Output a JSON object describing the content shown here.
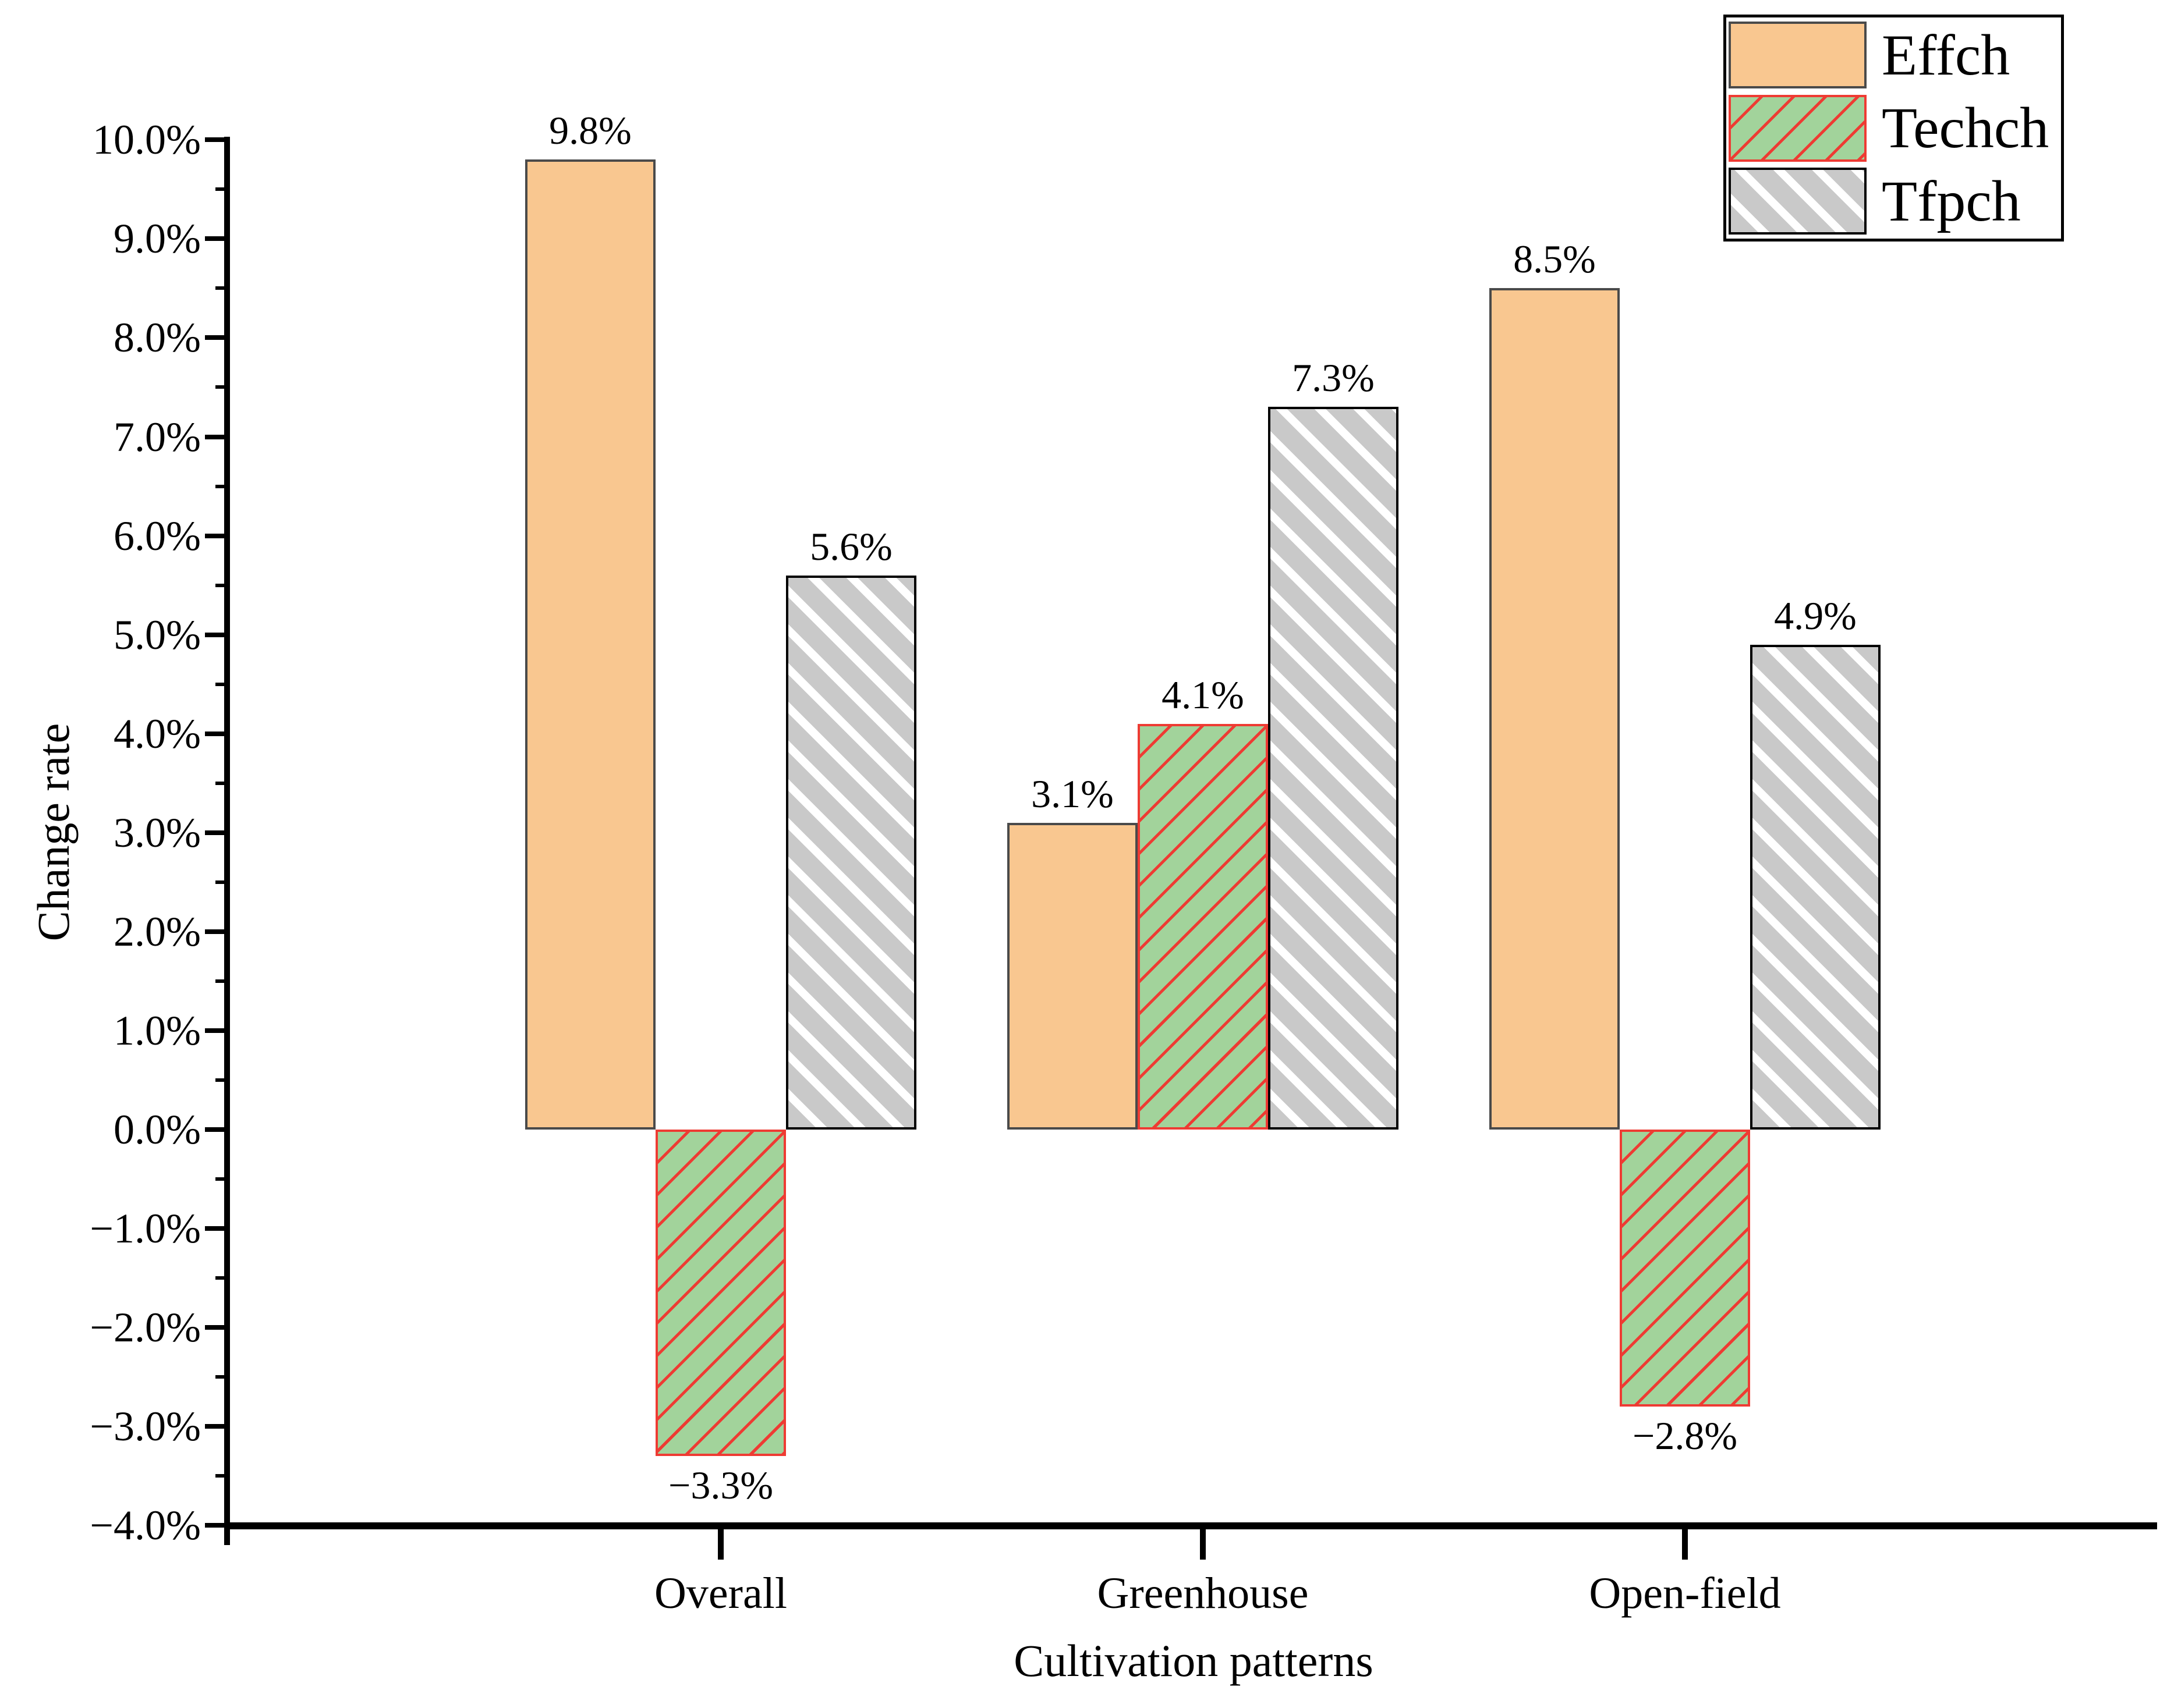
{
  "chart_data": {
    "type": "bar",
    "title": "",
    "xlabel": "Cultivation patterns",
    "ylabel": "Change rate",
    "categories": [
      "Overall",
      "Greenhouse",
      "Open-field"
    ],
    "series": [
      {
        "name": "Effch",
        "values": [
          9.8,
          3.1,
          8.5
        ],
        "value_labels": [
          "9.8%",
          "3.1%",
          "8.5%"
        ],
        "fill": "#F9C790",
        "hatch": "none",
        "border": "#4a4a4a"
      },
      {
        "name": "Techch",
        "values": [
          -3.3,
          4.1,
          -2.8
        ],
        "value_labels": [
          "−3.3%",
          "4.1%",
          "−2.8%"
        ],
        "fill": "#A2D39B",
        "hatch": "/",
        "hatch_color": "#EE3B33",
        "border": "#EE3B33"
      },
      {
        "name": "Tfpch",
        "values": [
          5.6,
          7.3,
          4.9
        ],
        "value_labels": [
          "5.6%",
          "7.3%",
          "4.9%"
        ],
        "fill": "#C9C9C9",
        "hatch": "\\",
        "hatch_color": "#ffffff",
        "border": "#000000"
      }
    ],
    "y_axis": {
      "min": -4.0,
      "max": 10.0,
      "major_step": 1.0,
      "minor_step": 0.5,
      "tick_labels": [
        "10.0%",
        "9.0%",
        "8.0%",
        "7.0%",
        "6.0%",
        "5.0%",
        "4.0%",
        "3.0%",
        "2.0%",
        "1.0%",
        "0.0%",
        "−1.0%",
        "−2.0%",
        "−3.0%",
        "−4.0%"
      ]
    },
    "legend": {
      "position": "top-right",
      "entries": [
        "Effch",
        "Techch",
        "Tfpch"
      ]
    },
    "grid": false
  }
}
